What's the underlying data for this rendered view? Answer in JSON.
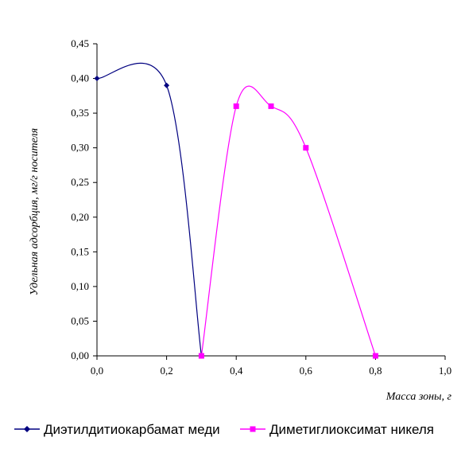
{
  "chart_data": {
    "type": "line",
    "xlabel": "Масса зоны, г",
    "ylabel": "Удельная адсорбция, мг/г носителя",
    "xlim": [
      0,
      1.0
    ],
    "ylim": [
      0,
      0.45
    ],
    "x_ticks": [
      "0,0",
      "0,2",
      "0,4",
      "0,6",
      "0,8",
      "1,0"
    ],
    "y_ticks": [
      "0,00",
      "0,05",
      "0,10",
      "0,15",
      "0,20",
      "0,25",
      "0,30",
      "0,35",
      "0,40",
      "0,45"
    ],
    "grid": false,
    "smooth": true,
    "legend_position": "bottom",
    "series": [
      {
        "name": "Диэтилдитиокарбамат меди",
        "color": "#000080",
        "marker": "diamond",
        "points": [
          {
            "x": 0.0,
            "y": 0.4
          },
          {
            "x": 0.2,
            "y": 0.39
          },
          {
            "x": 0.3,
            "y": 0.0
          }
        ]
      },
      {
        "name": "Диметиглиоксимат никеля",
        "color": "#FF00FF",
        "marker": "square",
        "points": [
          {
            "x": 0.3,
            "y": 0.0
          },
          {
            "x": 0.4,
            "y": 0.36
          },
          {
            "x": 0.5,
            "y": 0.36
          },
          {
            "x": 0.6,
            "y": 0.3
          },
          {
            "x": 0.8,
            "y": 0.0
          }
        ]
      }
    ]
  }
}
